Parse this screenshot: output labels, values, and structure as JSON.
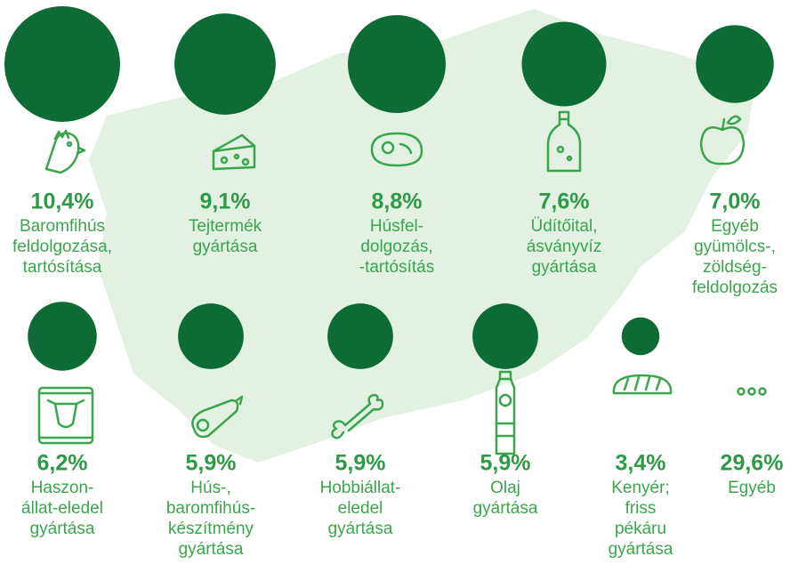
{
  "chart_data": {
    "type": "bubble",
    "color": "#0d6b36",
    "categories": [
      [
        "Baromfihús",
        "feldolgozása,",
        "tartósítása"
      ],
      [
        "Tejtermék",
        "gyártása"
      ],
      [
        "Húsfel-",
        "dolgozás,",
        "-tartósítás"
      ],
      [
        "Üdítőital,",
        "ásványvíz",
        "gyártása"
      ],
      [
        "Egyéb",
        "gyümölcs-,",
        "zöldség-",
        "feldolgozás"
      ],
      [
        "Haszon-",
        "állat-eledel",
        "gyártása"
      ],
      [
        "Hús-,",
        "baromfihús-",
        "készítmény",
        "gyártása"
      ],
      [
        "Hobbiállat-",
        "eledel",
        "gyártása"
      ],
      [
        "Olaj",
        "gyártása"
      ],
      [
        "Kenyér;",
        "friss",
        "pékáru",
        "gyártása"
      ]
    ],
    "values": [
      10.4,
      9.1,
      8.8,
      7.6,
      7.0,
      6.2,
      5.9,
      5.9,
      5.9,
      3.4
    ],
    "value_labels": [
      "10,4%",
      "9,1%",
      "8,8%",
      "7,6%",
      "7,0%",
      "6,2%",
      "5,9%",
      "5,9%",
      "5,9%",
      "3,4%"
    ],
    "other": {
      "label": "Egyéb",
      "value_label": "29,6%"
    }
  }
}
